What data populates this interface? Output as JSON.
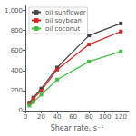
{
  "chart_data": {
    "type": "line",
    "xlabel": "Shear rate, s⁻¹",
    "x": [
      5,
      10,
      20,
      40,
      80,
      120
    ],
    "series": [
      {
        "name": "oil sunflower",
        "color": "#444444",
        "marker": "square",
        "values": [
          80,
          130,
          220,
          430,
          750,
          870
        ]
      },
      {
        "name": "oil soybean",
        "color": "#dd2222",
        "marker": "square",
        "values": [
          70,
          120,
          200,
          410,
          660,
          790
        ]
      },
      {
        "name": "oil coconut",
        "color": "#44bb44",
        "marker": "square",
        "values": [
          50,
          85,
          160,
          310,
          490,
          590
        ]
      }
    ],
    "xlim": [
      0,
      130
    ],
    "ylim": [
      0,
      1050
    ],
    "xticks": [
      0,
      20,
      40,
      60,
      80,
      100,
      120
    ],
    "yticks": [
      0,
      200,
      400,
      600,
      800,
      1000
    ],
    "grid": false,
    "legend": "upper left"
  }
}
